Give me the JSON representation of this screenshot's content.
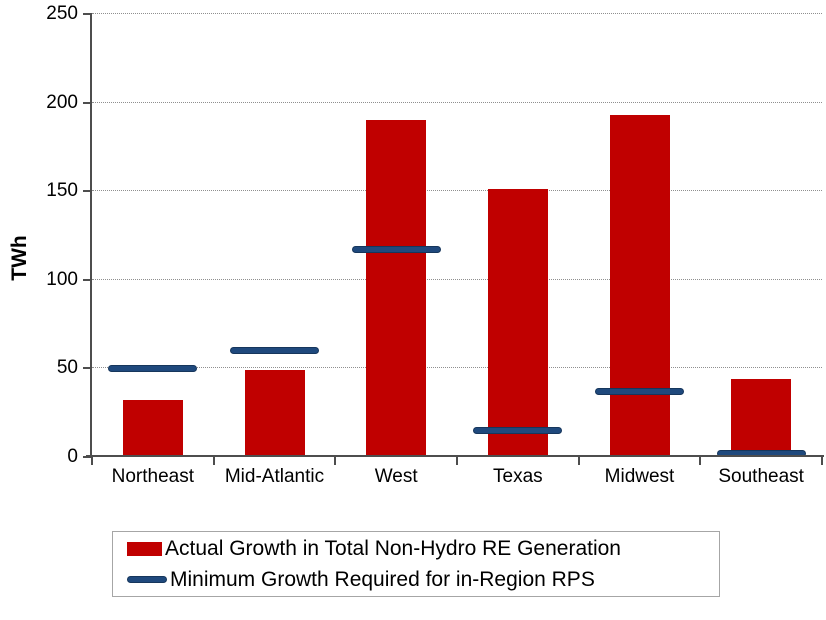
{
  "chart_data": {
    "type": "bar",
    "title": "",
    "xlabel": "",
    "ylabel": "TWh",
    "ylim": [
      0,
      250
    ],
    "yticks": [
      0,
      50,
      100,
      150,
      200,
      250
    ],
    "grid": "horizontal-dotted",
    "legend_position": "bottom-boxed",
    "categories": [
      "Northeast",
      "Mid-Atlantic",
      "West",
      "Texas",
      "Midwest",
      "Southeast"
    ],
    "series": [
      {
        "name": "Actual Growth in Total Non-Hydro RE Generation",
        "type": "bar",
        "color": "#C00000",
        "values": [
          32,
          49,
          190,
          151,
          193,
          44
        ]
      },
      {
        "name": "Minimum Growth Required for in-Region RPS",
        "type": "line-marker",
        "color": "#1F497D",
        "values": [
          50,
          60,
          117,
          15,
          37,
          2
        ]
      }
    ]
  },
  "colors": {
    "bar": "#C00000",
    "marker": "#1F497D",
    "marker_border": "#16365C",
    "axis": "#4D4D4D",
    "gridline": "#8F8F8F",
    "legend_border": "#A6A6A6",
    "background": "#FFFFFF",
    "text": "#000000"
  }
}
